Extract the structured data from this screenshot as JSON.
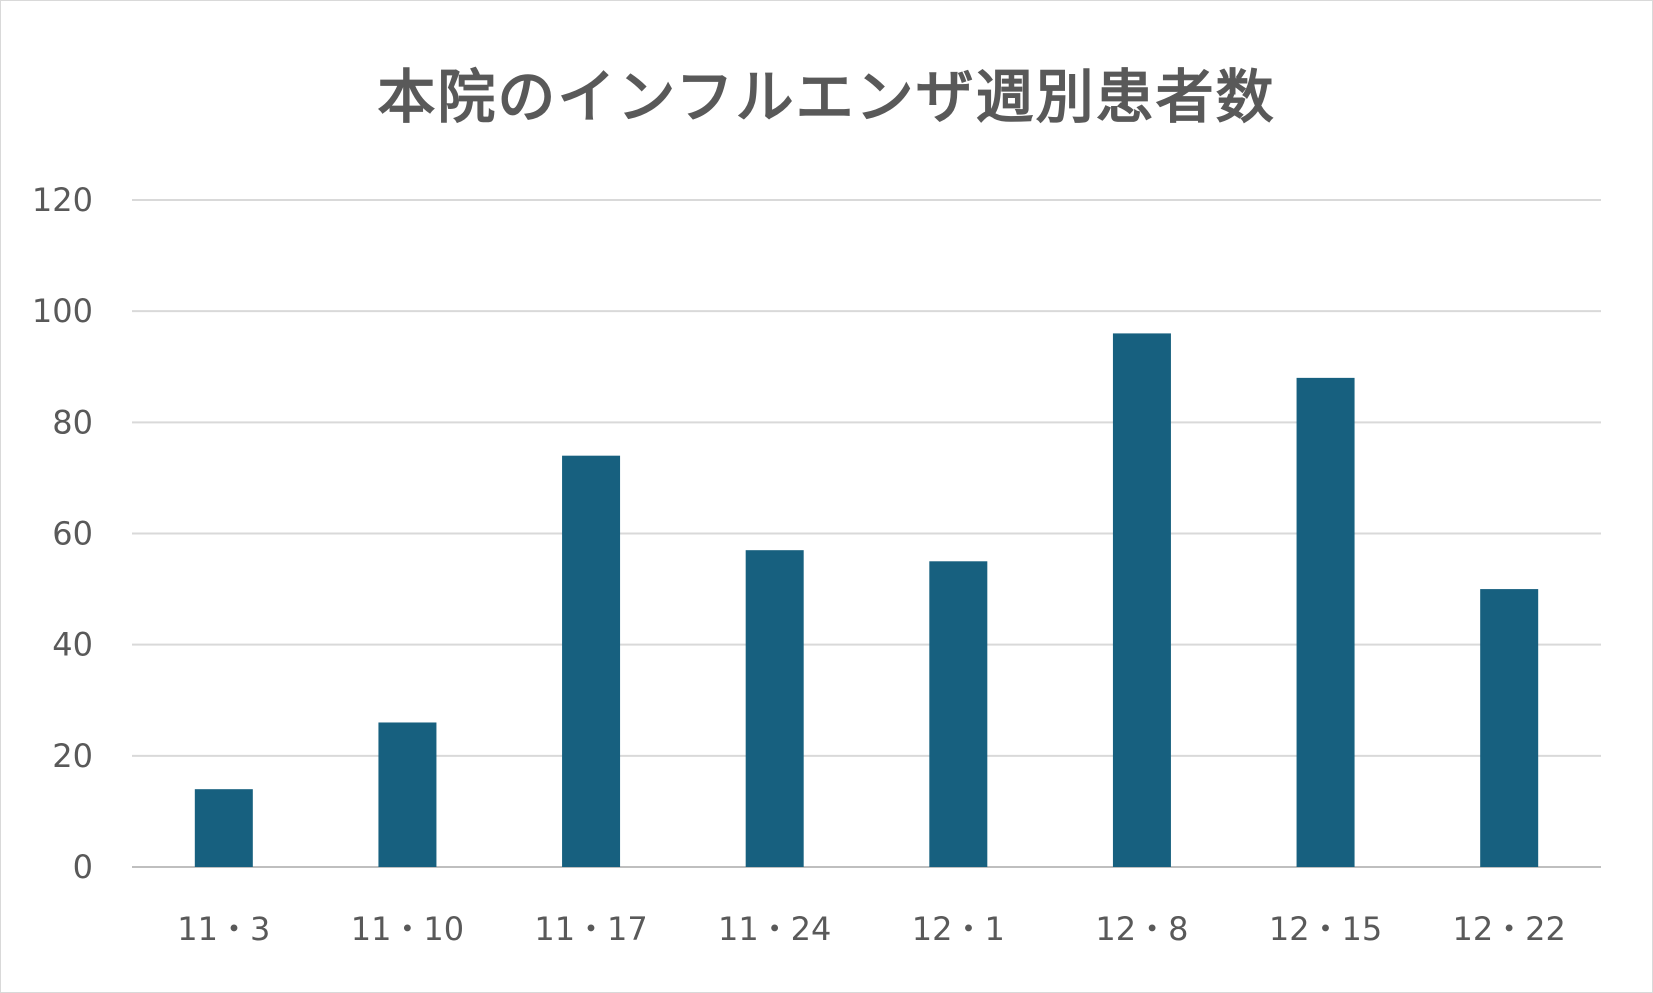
{
  "chart_data": {
    "type": "bar",
    "title": "本院のインフルエンザ週別患者数",
    "categories": [
      "11・3",
      "11・10",
      "11・17",
      "11・24",
      "12・1",
      "12・8",
      "12・15",
      "12・22"
    ],
    "values": [
      14,
      26,
      74,
      57,
      55,
      96,
      88,
      50
    ],
    "xlabel": "",
    "ylabel": "",
    "ylim": [
      0,
      120
    ],
    "yticks": [
      0,
      20,
      40,
      60,
      80,
      100,
      120
    ],
    "grid": true,
    "legend": "none",
    "bar_color": "#17607f",
    "grid_color": "#d9d9d9",
    "text_color": "#595959"
  }
}
